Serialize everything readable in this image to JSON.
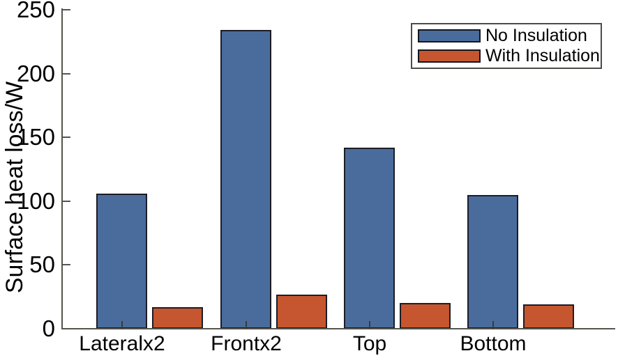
{
  "chart_data": {
    "type": "bar",
    "title": "",
    "categories": [
      "Lateralx2",
      "Frontx2",
      "Top",
      "Bottom"
    ],
    "series": [
      {
        "name": "No Insulation",
        "color": "#4A6C9C",
        "values": [
          106,
          234,
          142,
          105
        ]
      },
      {
        "name": "With Insulation",
        "color": "#C5562F",
        "values": [
          17,
          27,
          20,
          19
        ]
      }
    ],
    "xlabel": "",
    "ylabel": "Surface heat loss/W",
    "ylim": [
      0,
      250
    ],
    "yticks": [
      0,
      50,
      100,
      150,
      200,
      250
    ],
    "grid": false,
    "legend_position": "top-right",
    "bar_edge_color": "#1c1c26",
    "axis_color": "#55554f"
  }
}
